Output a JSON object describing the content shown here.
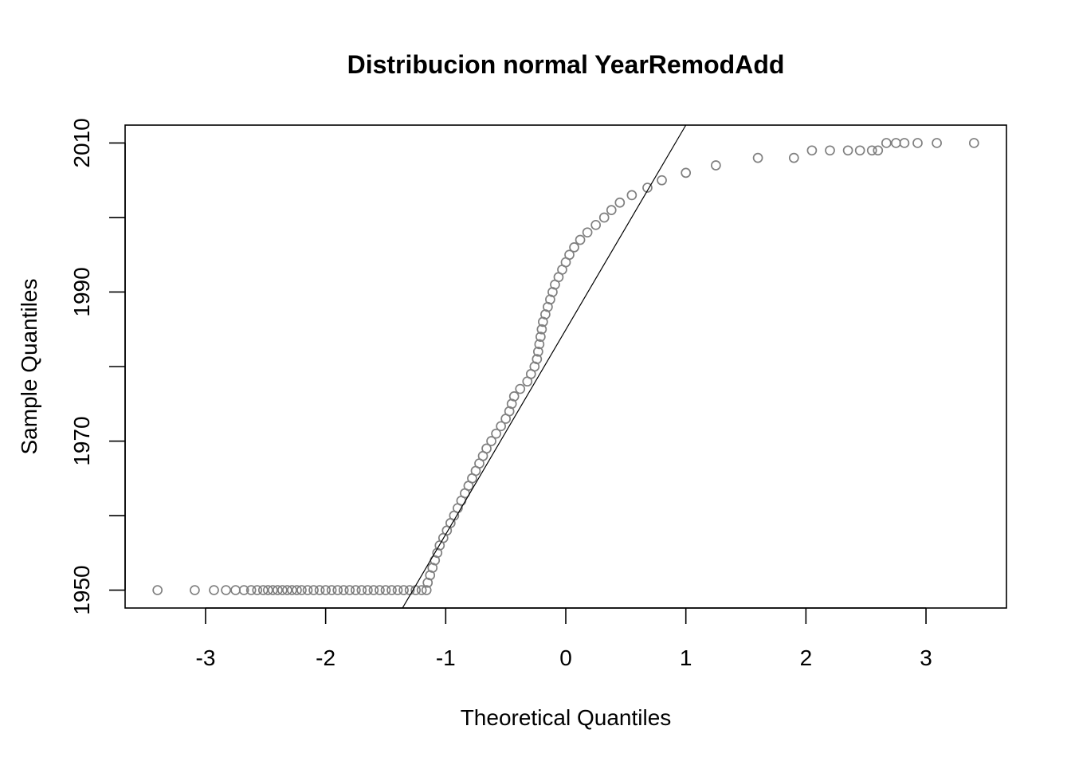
{
  "chart_data": {
    "type": "scatter",
    "title": "Distribucion normal YearRemodAdd",
    "xlabel": "Theoretical Quantiles",
    "ylabel": "Sample Quantiles",
    "xlim": [
      -3.67,
      3.67
    ],
    "ylim": [
      1947.6,
      2012.4
    ],
    "x_ticks": [
      -3,
      -2,
      -1,
      0,
      1,
      2,
      3
    ],
    "x_tick_labels": [
      "-3",
      "-2",
      "-1",
      "0",
      "1",
      "2",
      "3"
    ],
    "y_ticks": [
      1950,
      1960,
      1970,
      1980,
      1990,
      2000,
      2010
    ],
    "y_tick_labels": [
      "1950",
      "",
      "1970",
      "",
      "1990",
      "",
      "2010"
    ],
    "grid": false,
    "legend": "none",
    "point_color": "#808080",
    "reference_line": {
      "x": [
        -1.36,
        1.0
      ],
      "y": [
        1947.6,
        2012.4
      ]
    },
    "series": [
      {
        "points": [
          [
            -3.4,
            1950
          ],
          [
            -3.09,
            1950
          ],
          [
            -2.93,
            1950
          ],
          [
            -2.83,
            1950
          ],
          [
            -2.75,
            1950
          ],
          [
            -2.68,
            1950
          ],
          [
            -2.62,
            1950
          ],
          [
            -2.57,
            1950
          ],
          [
            -2.52,
            1950
          ],
          [
            -2.48,
            1950
          ],
          [
            -2.44,
            1950
          ],
          [
            -2.4,
            1950
          ],
          [
            -2.36,
            1950
          ],
          [
            -2.32,
            1950
          ],
          [
            -2.28,
            1950
          ],
          [
            -2.24,
            1950
          ],
          [
            -2.2,
            1950
          ],
          [
            -2.15,
            1950
          ],
          [
            -2.1,
            1950
          ],
          [
            -2.05,
            1950
          ],
          [
            -2.0,
            1950
          ],
          [
            -1.95,
            1950
          ],
          [
            -1.9,
            1950
          ],
          [
            -1.85,
            1950
          ],
          [
            -1.8,
            1950
          ],
          [
            -1.75,
            1950
          ],
          [
            -1.7,
            1950
          ],
          [
            -1.65,
            1950
          ],
          [
            -1.6,
            1950
          ],
          [
            -1.55,
            1950
          ],
          [
            -1.5,
            1950
          ],
          [
            -1.45,
            1950
          ],
          [
            -1.4,
            1950
          ],
          [
            -1.35,
            1950
          ],
          [
            -1.3,
            1950
          ],
          [
            -1.25,
            1950
          ],
          [
            -1.2,
            1950
          ],
          [
            -1.16,
            1950
          ],
          [
            -1.15,
            1951
          ],
          [
            -1.13,
            1952
          ],
          [
            -1.11,
            1953
          ],
          [
            -1.09,
            1954
          ],
          [
            -1.07,
            1955
          ],
          [
            -1.05,
            1956
          ],
          [
            -1.02,
            1957
          ],
          [
            -0.99,
            1958
          ],
          [
            -0.96,
            1959
          ],
          [
            -0.93,
            1960
          ],
          [
            -0.9,
            1961
          ],
          [
            -0.87,
            1962
          ],
          [
            -0.84,
            1963
          ],
          [
            -0.81,
            1964
          ],
          [
            -0.78,
            1965
          ],
          [
            -0.75,
            1966
          ],
          [
            -0.72,
            1967
          ],
          [
            -0.69,
            1968
          ],
          [
            -0.66,
            1969
          ],
          [
            -0.62,
            1970
          ],
          [
            -0.58,
            1971
          ],
          [
            -0.54,
            1972
          ],
          [
            -0.5,
            1973
          ],
          [
            -0.47,
            1974
          ],
          [
            -0.45,
            1975
          ],
          [
            -0.43,
            1976
          ],
          [
            -0.38,
            1977
          ],
          [
            -0.32,
            1978
          ],
          [
            -0.29,
            1979
          ],
          [
            -0.26,
            1980
          ],
          [
            -0.24,
            1981
          ],
          [
            -0.23,
            1982
          ],
          [
            -0.22,
            1983
          ],
          [
            -0.21,
            1984
          ],
          [
            -0.2,
            1985
          ],
          [
            -0.19,
            1986
          ],
          [
            -0.17,
            1987
          ],
          [
            -0.15,
            1988
          ],
          [
            -0.13,
            1989
          ],
          [
            -0.11,
            1990
          ],
          [
            -0.09,
            1991
          ],
          [
            -0.06,
            1992
          ],
          [
            -0.03,
            1993
          ],
          [
            0.0,
            1994
          ],
          [
            0.03,
            1995
          ],
          [
            0.07,
            1996
          ],
          [
            0.12,
            1997
          ],
          [
            0.18,
            1998
          ],
          [
            0.25,
            1999
          ],
          [
            0.32,
            2000
          ],
          [
            0.38,
            2001
          ],
          [
            0.45,
            2002
          ],
          [
            0.55,
            2003
          ],
          [
            0.68,
            2004
          ],
          [
            0.8,
            2005
          ],
          [
            1.0,
            2006
          ],
          [
            1.25,
            2007
          ],
          [
            1.6,
            2008
          ],
          [
            1.9,
            2008
          ],
          [
            2.05,
            2009
          ],
          [
            2.2,
            2009
          ],
          [
            2.35,
            2009
          ],
          [
            2.45,
            2009
          ],
          [
            2.55,
            2009
          ],
          [
            2.6,
            2009
          ],
          [
            2.67,
            2010
          ],
          [
            2.75,
            2010
          ],
          [
            2.82,
            2010
          ],
          [
            2.93,
            2010
          ],
          [
            3.09,
            2010
          ],
          [
            3.4,
            2010
          ]
        ]
      }
    ]
  }
}
